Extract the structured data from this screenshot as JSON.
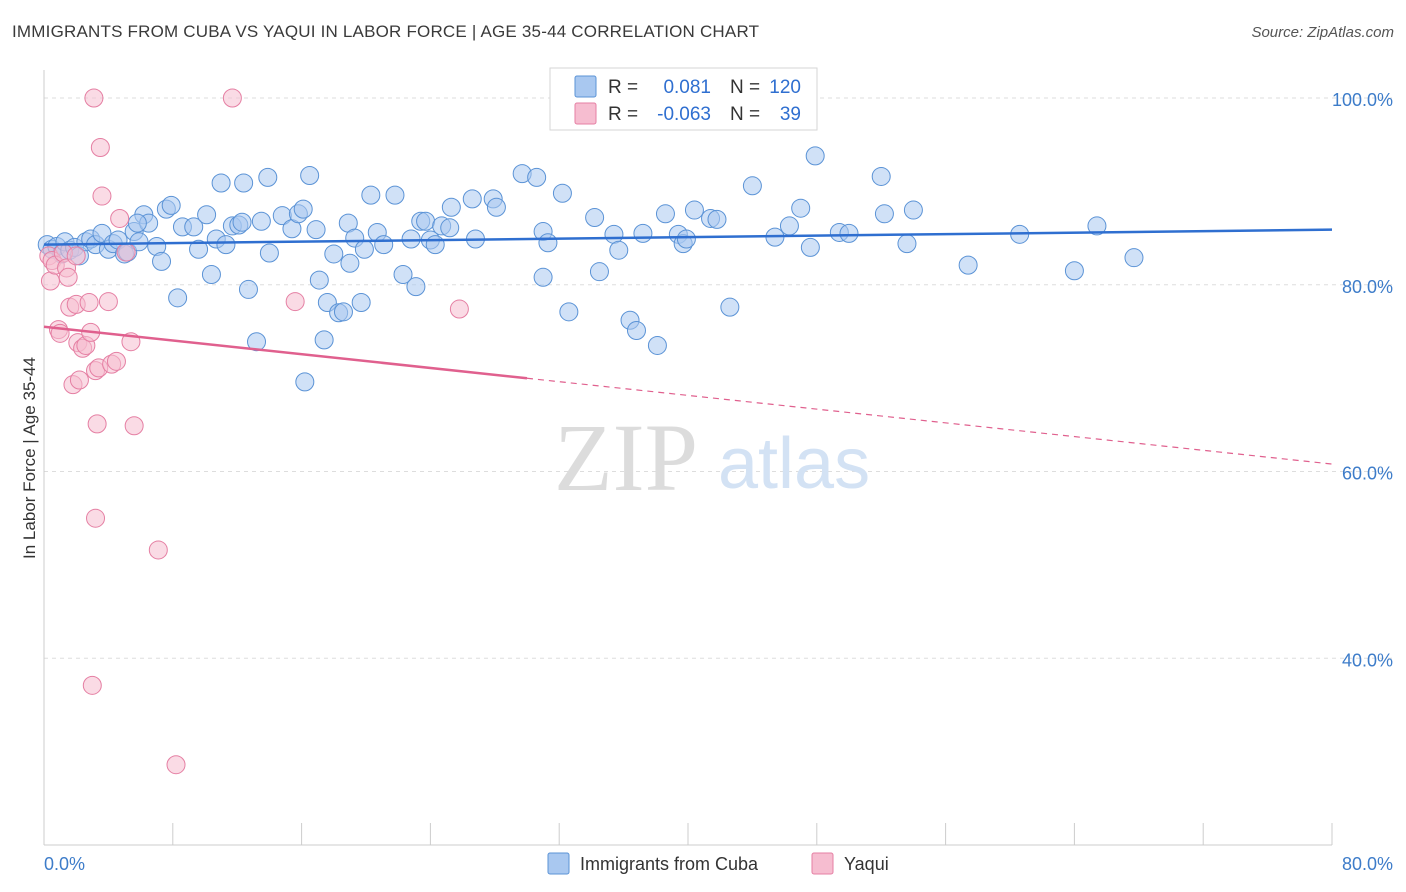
{
  "title": "IMMIGRANTS FROM CUBA VS YAQUI IN LABOR FORCE | AGE 35-44 CORRELATION CHART",
  "source": "Source: ZipAtlas.com",
  "watermark": {
    "zip": "ZIP",
    "atlas": "atlas"
  },
  "colors": {
    "cuba_fill": "#a9c8f0",
    "cuba_stroke": "#5b93d6",
    "cuba_line": "#2f6fd0",
    "yaqui_fill": "#f6bdd0",
    "yaqui_stroke": "#e57fa3",
    "yaqui_line": "#e0608e",
    "axis_label": "#3d7cc9",
    "grid": "#dddddd"
  },
  "legend": {
    "r_label": "R =",
    "n_label": "N =",
    "rows": [
      {
        "r": "0.081",
        "n": "120"
      },
      {
        "r": "-0.063",
        "n": "39"
      }
    ]
  },
  "bottom_legend": [
    "Immigrants from Cuba",
    "Yaqui"
  ],
  "chart_data": {
    "type": "scatter",
    "xlabel": "",
    "ylabel": "In Labor Force | Age 35-44",
    "xlim": [
      0,
      80
    ],
    "ylim": [
      20,
      103
    ],
    "x_tick_labels": [
      "0.0%",
      "80.0%"
    ],
    "y_ticks": [
      40,
      60,
      80,
      100
    ],
    "y_tick_labels": [
      "40.0%",
      "60.0%",
      "80.0%",
      "100.0%"
    ],
    "grid": true,
    "legend_position": "top-center",
    "series": [
      {
        "name": "Immigrants from Cuba",
        "trend": {
          "x": [
            0,
            80
          ],
          "y": [
            84.3,
            85.9
          ],
          "dashed_from": null
        },
        "points": [
          [
            0.2,
            84.3
          ],
          [
            0.5,
            83.8
          ],
          [
            0.8,
            84.1
          ],
          [
            1.1,
            83.3
          ],
          [
            1.3,
            84.6
          ],
          [
            1.6,
            83.7
          ],
          [
            1.9,
            84.0
          ],
          [
            2.2,
            83.1
          ],
          [
            2.6,
            84.6
          ],
          [
            2.9,
            84.9
          ],
          [
            3.2,
            84.3
          ],
          [
            3.6,
            85.5
          ],
          [
            4.0,
            83.8
          ],
          [
            4.3,
            84.4
          ],
          [
            4.6,
            84.8
          ],
          [
            5.0,
            83.3
          ],
          [
            5.2,
            83.5
          ],
          [
            5.6,
            85.7
          ],
          [
            5.9,
            84.6
          ],
          [
            6.2,
            87.5
          ],
          [
            6.5,
            86.6
          ],
          [
            7.0,
            84.1
          ],
          [
            7.3,
            82.5
          ],
          [
            7.6,
            88.1
          ],
          [
            7.9,
            88.5
          ],
          [
            8.3,
            78.6
          ],
          [
            8.6,
            86.2
          ],
          [
            9.3,
            86.2
          ],
          [
            9.6,
            83.8
          ],
          [
            10.1,
            87.5
          ],
          [
            10.4,
            81.1
          ],
          [
            10.7,
            84.9
          ],
          [
            11.0,
            90.9
          ],
          [
            11.3,
            84.3
          ],
          [
            11.7,
            86.3
          ],
          [
            12.1,
            86.4
          ],
          [
            12.3,
            86.7
          ],
          [
            12.4,
            90.9
          ],
          [
            12.7,
            79.5
          ],
          [
            13.2,
            73.9
          ],
          [
            13.5,
            86.8
          ],
          [
            13.9,
            91.5
          ],
          [
            14.0,
            83.4
          ],
          [
            14.8,
            87.4
          ],
          [
            15.4,
            86.0
          ],
          [
            15.8,
            87.6
          ],
          [
            16.1,
            88.1
          ],
          [
            16.5,
            91.7
          ],
          [
            16.9,
            85.9
          ],
          [
            17.1,
            80.5
          ],
          [
            17.4,
            74.1
          ],
          [
            17.6,
            78.1
          ],
          [
            18.0,
            83.3
          ],
          [
            18.3,
            77.0
          ],
          [
            18.6,
            77.1
          ],
          [
            18.9,
            86.6
          ],
          [
            19.0,
            82.3
          ],
          [
            19.3,
            85.0
          ],
          [
            19.7,
            78.1
          ],
          [
            19.9,
            83.8
          ],
          [
            20.3,
            89.6
          ],
          [
            20.7,
            85.6
          ],
          [
            21.1,
            84.3
          ],
          [
            21.8,
            89.6
          ],
          [
            22.3,
            81.1
          ],
          [
            22.8,
            84.9
          ],
          [
            23.1,
            79.8
          ],
          [
            23.4,
            86.8
          ],
          [
            23.7,
            86.8
          ],
          [
            24.0,
            84.8
          ],
          [
            24.3,
            84.3
          ],
          [
            24.7,
            86.3
          ],
          [
            25.3,
            88.3
          ],
          [
            26.6,
            89.2
          ],
          [
            26.8,
            84.9
          ],
          [
            27.9,
            89.2
          ],
          [
            28.1,
            88.3
          ],
          [
            29.7,
            91.9
          ],
          [
            30.6,
            91.5
          ],
          [
            31.0,
            85.7
          ],
          [
            31.3,
            84.5
          ],
          [
            31.0,
            80.8
          ],
          [
            32.2,
            89.8
          ],
          [
            32.6,
            77.1
          ],
          [
            34.2,
            87.2
          ],
          [
            34.5,
            81.4
          ],
          [
            35.4,
            85.4
          ],
          [
            35.7,
            83.7
          ],
          [
            36.4,
            76.2
          ],
          [
            36.8,
            75.1
          ],
          [
            37.2,
            85.5
          ],
          [
            38.1,
            73.5
          ],
          [
            38.6,
            87.6
          ],
          [
            39.4,
            85.4
          ],
          [
            39.7,
            84.4
          ],
          [
            39.9,
            84.9
          ],
          [
            40.4,
            88.0
          ],
          [
            41.4,
            87.1
          ],
          [
            41.8,
            87.0
          ],
          [
            42.6,
            77.6
          ],
          [
            44.0,
            90.6
          ],
          [
            45.4,
            85.1
          ],
          [
            46.3,
            86.3
          ],
          [
            47.0,
            88.2
          ],
          [
            47.6,
            84.0
          ],
          [
            49.4,
            85.6
          ],
          [
            50.0,
            85.5
          ],
          [
            52.0,
            91.6
          ],
          [
            52.2,
            87.6
          ],
          [
            53.6,
            84.4
          ],
          [
            54.0,
            88.0
          ],
          [
            57.4,
            82.1
          ],
          [
            60.6,
            85.4
          ],
          [
            64.0,
            81.5
          ],
          [
            65.4,
            86.3
          ],
          [
            67.7,
            82.9
          ],
          [
            47.9,
            93.8
          ],
          [
            25.2,
            86.1
          ],
          [
            16.2,
            69.6
          ],
          [
            5.8,
            86.6
          ]
        ]
      },
      {
        "name": "Yaqui",
        "trend": {
          "x": [
            0,
            80
          ],
          "y": [
            75.5,
            60.8
          ],
          "dashed_from": 30
        },
        "points": [
          [
            0.3,
            83.1
          ],
          [
            0.4,
            80.4
          ],
          [
            0.5,
            82.6
          ],
          [
            0.7,
            82.1
          ],
          [
            0.9,
            75.2
          ],
          [
            1.0,
            74.8
          ],
          [
            1.2,
            83.4
          ],
          [
            1.4,
            81.8
          ],
          [
            1.5,
            80.8
          ],
          [
            1.6,
            77.6
          ],
          [
            1.8,
            69.3
          ],
          [
            2.0,
            83.1
          ],
          [
            2.0,
            77.9
          ],
          [
            2.1,
            73.8
          ],
          [
            2.2,
            69.8
          ],
          [
            2.4,
            73.2
          ],
          [
            2.6,
            73.5
          ],
          [
            2.8,
            78.1
          ],
          [
            2.9,
            74.9
          ],
          [
            3.0,
            37.1
          ],
          [
            3.2,
            70.8
          ],
          [
            3.2,
            55.0
          ],
          [
            3.3,
            65.1
          ],
          [
            3.4,
            71.1
          ],
          [
            3.5,
            94.7
          ],
          [
            3.6,
            89.5
          ],
          [
            4.0,
            78.2
          ],
          [
            4.2,
            71.5
          ],
          [
            4.5,
            71.8
          ],
          [
            4.7,
            87.1
          ],
          [
            5.4,
            73.9
          ],
          [
            5.6,
            64.9
          ],
          [
            5.1,
            83.5
          ],
          [
            7.1,
            51.6
          ],
          [
            8.2,
            28.6
          ],
          [
            3.1,
            100.0
          ],
          [
            11.7,
            100.0
          ],
          [
            15.6,
            78.2
          ],
          [
            25.8,
            77.4
          ]
        ]
      }
    ]
  }
}
